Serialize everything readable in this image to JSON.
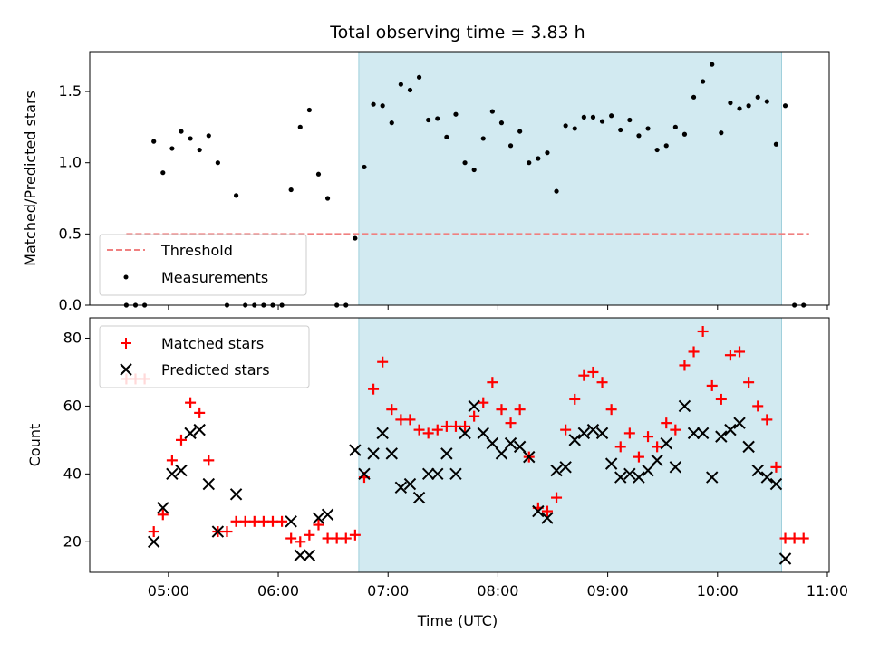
{
  "chart_data": [
    {
      "type": "scatter",
      "title": "Total observing time = 3.83 h",
      "xlabel": "",
      "ylabel": "Matched/Predicted stars",
      "ylim": [
        0,
        1.78
      ],
      "yticks": [
        "0.0",
        "0.5",
        "1.0",
        "1.5"
      ],
      "ytick_values": [
        0,
        0.5,
        1.0,
        1.5
      ],
      "xlim": [
        "04:17",
        "11:01"
      ],
      "highlight_span": {
        "start": "06:44",
        "end": "10:35",
        "color": "#add8e6"
      },
      "threshold": {
        "name": "Threshold",
        "value": 0.5,
        "from": "04:37",
        "to": "10:50",
        "color": "#f08080"
      },
      "legend": {
        "position": "lower-left",
        "entries": [
          "Threshold",
          "Measurements"
        ]
      },
      "series": [
        {
          "name": "Measurements",
          "color": "#000000",
          "x": [
            "04:37",
            "04:42",
            "04:47",
            "04:52",
            "04:57",
            "05:02",
            "05:07",
            "05:12",
            "05:17",
            "05:22",
            "05:27",
            "05:32",
            "05:37",
            "05:42",
            "05:47",
            "05:52",
            "05:57",
            "06:02",
            "06:07",
            "06:12",
            "06:17",
            "06:22",
            "06:27",
            "06:32",
            "06:37",
            "06:42",
            "06:47",
            "06:52",
            "06:57",
            "07:02",
            "07:07",
            "07:12",
            "07:17",
            "07:22",
            "07:27",
            "07:32",
            "07:37",
            "07:42",
            "07:47",
            "07:52",
            "07:57",
            "08:02",
            "08:07",
            "08:12",
            "08:17",
            "08:22",
            "08:27",
            "08:32",
            "08:37",
            "08:42",
            "08:47",
            "08:52",
            "08:57",
            "09:02",
            "09:07",
            "09:12",
            "09:17",
            "09:22",
            "09:27",
            "09:32",
            "09:37",
            "09:42",
            "09:47",
            "09:52",
            "09:57",
            "10:02",
            "10:07",
            "10:12",
            "10:17",
            "10:22",
            "10:27",
            "10:32",
            "10:37",
            "10:42",
            "10:47"
          ],
          "y": [
            0,
            0,
            0,
            1.15,
            0.93,
            1.1,
            1.22,
            1.17,
            1.09,
            1.19,
            1.0,
            0,
            0.77,
            0,
            0,
            0,
            0,
            0,
            0.81,
            1.25,
            1.37,
            0.92,
            0.75,
            0,
            0,
            0.47,
            0.97,
            1.41,
            1.4,
            1.28,
            1.55,
            1.51,
            1.6,
            1.3,
            1.31,
            1.18,
            1.34,
            1.0,
            0.95,
            1.17,
            1.36,
            1.28,
            1.12,
            1.22,
            1.0,
            1.03,
            1.07,
            0.8,
            1.26,
            1.24,
            1.32,
            1.32,
            1.29,
            1.33,
            1.23,
            1.3,
            1.19,
            1.24,
            1.09,
            1.12,
            1.25,
            1.2,
            1.46,
            1.57,
            1.69,
            1.21,
            1.42,
            1.38,
            1.4,
            1.46,
            1.43,
            1.13,
            1.4,
            0,
            0
          ]
        }
      ]
    },
    {
      "type": "scatter",
      "title": "",
      "xlabel": "Time (UTC)",
      "ylabel": "Count",
      "ylim": [
        11,
        86
      ],
      "yticks": [
        "20",
        "40",
        "60",
        "80"
      ],
      "ytick_values": [
        20,
        40,
        60,
        80
      ],
      "xlim": [
        "04:17",
        "11:01"
      ],
      "xticks": [
        "05:00",
        "06:00",
        "07:00",
        "08:00",
        "09:00",
        "10:00",
        "11:00"
      ],
      "highlight_span": {
        "start": "06:44",
        "end": "10:35",
        "color": "#add8e6"
      },
      "legend": {
        "position": "top-left",
        "entries": [
          "Matched stars",
          "Predicted stars"
        ]
      },
      "series": [
        {
          "name": "Matched stars",
          "marker": "+",
          "color": "#ff0000",
          "x": [
            "04:37",
            "04:42",
            "04:47",
            "04:52",
            "04:57",
            "05:02",
            "05:07",
            "05:12",
            "05:17",
            "05:22",
            "05:27",
            "05:32",
            "05:37",
            "05:42",
            "05:47",
            "05:52",
            "05:57",
            "06:02",
            "06:07",
            "06:12",
            "06:17",
            "06:22",
            "06:27",
            "06:32",
            "06:37",
            "06:42",
            "06:47",
            "06:52",
            "06:57",
            "07:02",
            "07:07",
            "07:12",
            "07:17",
            "07:22",
            "07:27",
            "07:32",
            "07:37",
            "07:42",
            "07:47",
            "07:52",
            "07:57",
            "08:02",
            "08:07",
            "08:12",
            "08:17",
            "08:22",
            "08:27",
            "08:32",
            "08:37",
            "08:42",
            "08:47",
            "08:52",
            "08:57",
            "09:02",
            "09:07",
            "09:12",
            "09:17",
            "09:22",
            "09:27",
            "09:32",
            "09:37",
            "09:42",
            "09:47",
            "09:52",
            "09:57",
            "10:02",
            "10:07",
            "10:12",
            "10:17",
            "10:22",
            "10:27",
            "10:32",
            "10:37",
            "10:42",
            "10:47"
          ],
          "y": [
            68,
            68,
            68,
            23,
            28,
            44,
            50,
            61,
            58,
            44,
            23,
            23,
            26,
            26,
            26,
            26,
            26,
            26,
            21,
            20,
            22,
            25,
            21,
            21,
            21,
            22,
            39,
            65,
            73,
            59,
            56,
            56,
            53,
            52,
            53,
            54,
            54,
            54,
            57,
            61,
            67,
            59,
            55,
            59,
            45,
            30,
            29,
            33,
            53,
            62,
            69,
            70,
            67,
            59,
            48,
            52,
            45,
            51,
            48,
            55,
            53,
            72,
            76,
            82,
            66,
            62,
            75,
            76,
            67,
            60,
            56,
            42,
            21,
            21,
            21
          ]
        },
        {
          "name": "Predicted stars",
          "marker": "x",
          "color": "#000000",
          "x": [
            "04:52",
            "04:57",
            "05:02",
            "05:07",
            "05:12",
            "05:17",
            "05:22",
            "05:27",
            "05:37",
            "06:07",
            "06:12",
            "06:17",
            "06:22",
            "06:27",
            "06:42",
            "06:47",
            "06:52",
            "06:57",
            "07:02",
            "07:07",
            "07:12",
            "07:17",
            "07:22",
            "07:27",
            "07:32",
            "07:37",
            "07:42",
            "07:47",
            "07:52",
            "07:57",
            "08:02",
            "08:07",
            "08:12",
            "08:17",
            "08:22",
            "08:27",
            "08:32",
            "08:37",
            "08:42",
            "08:47",
            "08:52",
            "08:57",
            "09:02",
            "09:07",
            "09:12",
            "09:17",
            "09:22",
            "09:27",
            "09:32",
            "09:37",
            "09:42",
            "09:47",
            "09:52",
            "09:57",
            "10:02",
            "10:07",
            "10:12",
            "10:17",
            "10:22",
            "10:27",
            "10:32",
            "10:37"
          ],
          "y": [
            20,
            30,
            40,
            41,
            52,
            53,
            37,
            23,
            34,
            26,
            16,
            16,
            27,
            28,
            47,
            40,
            46,
            52,
            46,
            36,
            37,
            33,
            40,
            40,
            46,
            40,
            52,
            60,
            52,
            49,
            46,
            49,
            48,
            45,
            29,
            27,
            41,
            42,
            50,
            52,
            53,
            52,
            43,
            39,
            40,
            39,
            41,
            44,
            49,
            42,
            60,
            52,
            52,
            39,
            51,
            53,
            55,
            48,
            41,
            39,
            37,
            15
          ]
        }
      ]
    }
  ]
}
